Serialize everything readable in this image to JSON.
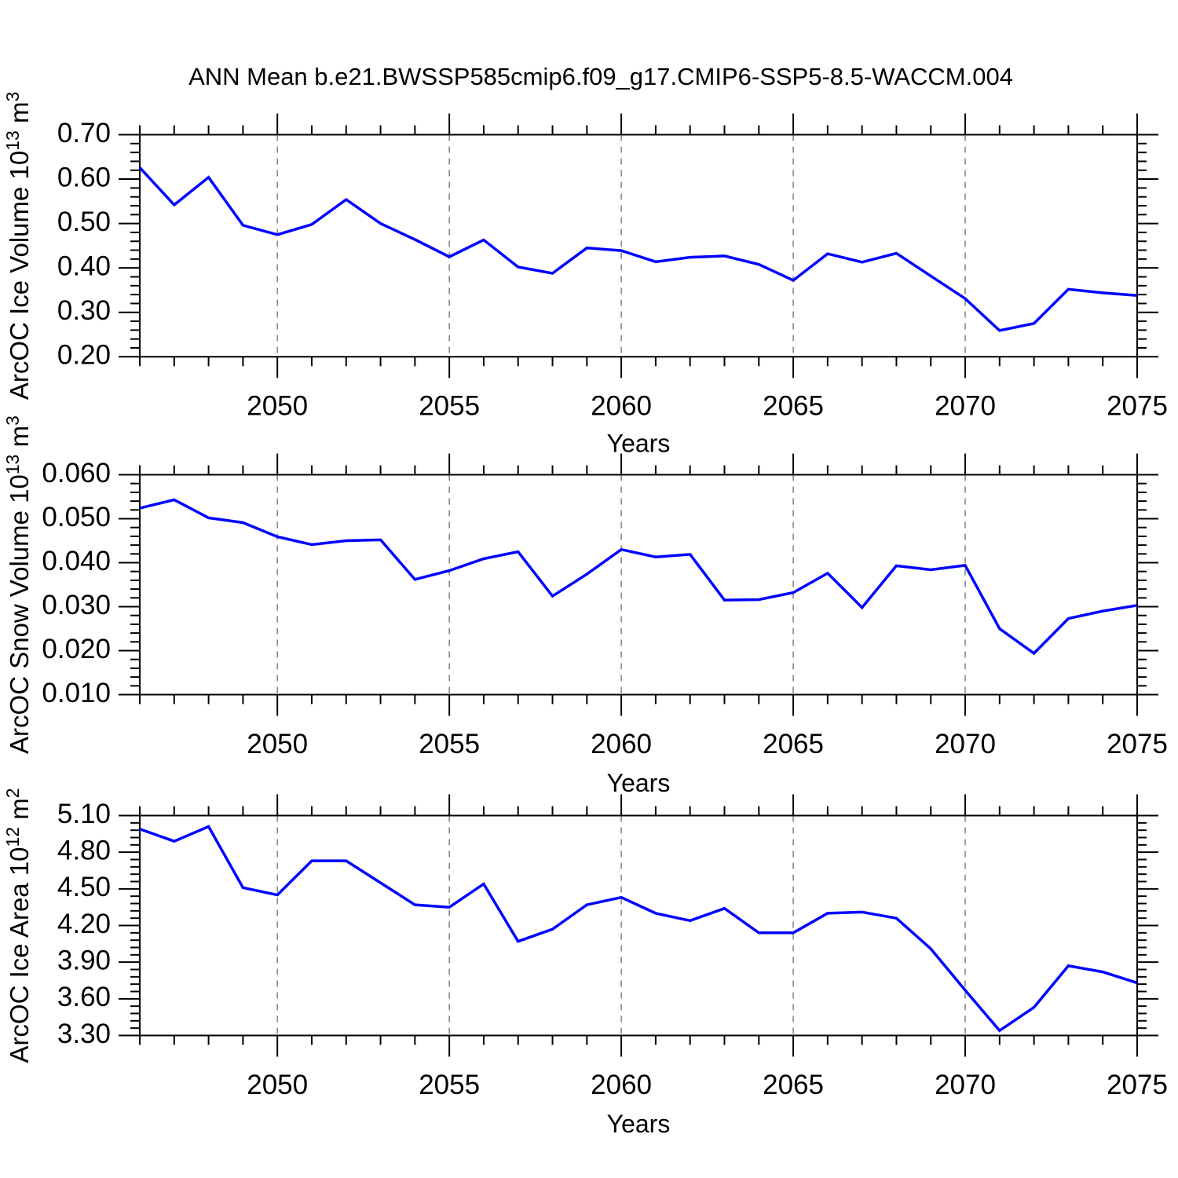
{
  "title": "ANN Mean b.e21.BWSSP585cmip6.f09_g17.CMIP6-SSP5-8.5-WACCM.004",
  "years": [
    2046,
    2047,
    2048,
    2049,
    2050,
    2051,
    2052,
    2053,
    2054,
    2055,
    2056,
    2057,
    2058,
    2059,
    2060,
    2061,
    2062,
    2063,
    2064,
    2065,
    2066,
    2067,
    2068,
    2069,
    2070,
    2071,
    2072,
    2073,
    2074,
    2075
  ],
  "chart_data": [
    {
      "id": "ice-volume",
      "type": "line",
      "ylabel_parts": [
        {
          "t": "ArcOC Ice Volume 10"
        },
        {
          "t": "13",
          "sup": true
        },
        {
          "t": " m"
        },
        {
          "t": "3",
          "sup": true
        }
      ],
      "xlabel": "Years",
      "x_start": 2046,
      "x_end": 2075,
      "xticks": [
        2050,
        2055,
        2060,
        2065,
        2070,
        2075
      ],
      "grid_years": [
        2050,
        2055,
        2060,
        2065,
        2070
      ],
      "ylim": [
        0.2,
        0.7
      ],
      "yticks": [
        0.2,
        0.3,
        0.4,
        0.5,
        0.6,
        0.7
      ],
      "ytick_labels": [
        "0.20",
        "0.30",
        "0.40",
        "0.50",
        "0.60",
        "0.70"
      ],
      "yminor_step": 0.02,
      "line_color": "#0000ff",
      "values": [
        0.626,
        0.542,
        0.604,
        0.496,
        0.475,
        0.498,
        0.554,
        0.5,
        0.464,
        0.425,
        0.463,
        0.402,
        0.388,
        0.445,
        0.439,
        0.414,
        0.424,
        0.427,
        0.408,
        0.372,
        0.432,
        0.413,
        0.433,
        0.382,
        0.331,
        0.259,
        0.275,
        0.352,
        0.344,
        0.338
      ]
    },
    {
      "id": "snow-volume",
      "type": "line",
      "ylabel_parts": [
        {
          "t": "ArcOC Snow Volume 10"
        },
        {
          "t": "13",
          "sup": true
        },
        {
          "t": " m"
        },
        {
          "t": "3",
          "sup": true
        }
      ],
      "xlabel": "Years",
      "x_start": 2046,
      "x_end": 2075,
      "xticks": [
        2050,
        2055,
        2060,
        2065,
        2070,
        2075
      ],
      "grid_years": [
        2050,
        2055,
        2060,
        2065,
        2070
      ],
      "ylim": [
        0.01,
        0.06
      ],
      "yticks": [
        0.01,
        0.02,
        0.03,
        0.04,
        0.05,
        0.06
      ],
      "ytick_labels": [
        "0.010",
        "0.020",
        "0.030",
        "0.040",
        "0.050",
        "0.060"
      ],
      "yminor_step": 0.002,
      "line_color": "#0000ff",
      "values": [
        0.0524,
        0.0543,
        0.0502,
        0.0491,
        0.0459,
        0.0441,
        0.045,
        0.0452,
        0.0362,
        0.0382,
        0.0409,
        0.0425,
        0.0324,
        0.0374,
        0.043,
        0.0413,
        0.0419,
        0.0315,
        0.0316,
        0.0332,
        0.0376,
        0.0298,
        0.0393,
        0.0384,
        0.0394,
        0.025,
        0.0194,
        0.0273,
        0.029,
        0.0303
      ]
    },
    {
      "id": "ice-area",
      "type": "line",
      "ylabel_parts": [
        {
          "t": "ArcOC Ice Area 10"
        },
        {
          "t": "12",
          "sup": true
        },
        {
          "t": " m"
        },
        {
          "t": "2",
          "sup": true
        }
      ],
      "xlabel": "Years",
      "x_start": 2046,
      "x_end": 2075,
      "xticks": [
        2050,
        2055,
        2060,
        2065,
        2070,
        2075
      ],
      "grid_years": [
        2050,
        2055,
        2060,
        2065,
        2070
      ],
      "ylim": [
        3.3,
        5.1
      ],
      "yticks": [
        3.3,
        3.6,
        3.9,
        4.2,
        4.5,
        4.8,
        5.1
      ],
      "ytick_labels": [
        "3.30",
        "3.60",
        "3.90",
        "4.20",
        "4.50",
        "4.80",
        "5.10"
      ],
      "yminor_step": 0.06,
      "line_color": "#0000ff",
      "values": [
        4.99,
        4.89,
        5.01,
        4.51,
        4.45,
        4.73,
        4.73,
        4.55,
        4.37,
        4.35,
        4.54,
        4.07,
        4.17,
        4.37,
        4.43,
        4.3,
        4.24,
        4.34,
        4.14,
        4.14,
        4.3,
        4.31,
        4.26,
        4.01,
        3.67,
        3.34,
        3.53,
        3.87,
        3.82,
        3.73
      ]
    }
  ]
}
